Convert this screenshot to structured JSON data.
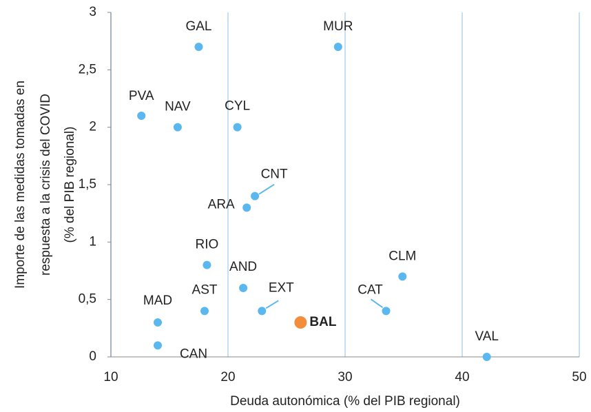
{
  "chart_data": {
    "type": "scatter",
    "xlabel": "Deuda autonómica  (% del PIB regional)",
    "ylabel": [
      "Importe de las medidas  tomadas en",
      "respuesta a la crisis del COVID",
      "(% del PIB regional)"
    ],
    "labels": [
      "GAL",
      "MUR",
      "PVA",
      "NAV",
      "CYL",
      "CNT",
      "ARA",
      "RIO",
      "AND",
      "CLM",
      "AST",
      "EXT",
      "CAT",
      "BAL",
      "MAD",
      "CAN",
      "VAL"
    ],
    "x": [
      17.5,
      29.4,
      12.6,
      15.7,
      20.8,
      22.3,
      21.6,
      18.2,
      21.3,
      34.9,
      18.0,
      22.9,
      33.5,
      26.2,
      14.0,
      14.0,
      42.1
    ],
    "values": [
      2.7,
      2.7,
      2.1,
      2.0,
      2.0,
      1.4,
      1.3,
      0.8,
      0.6,
      0.7,
      0.4,
      0.4,
      0.4,
      0.3,
      0.3,
      0.1,
      0.0
    ],
    "color": "#5bb8ef",
    "colors": [
      "#5bb8ef",
      "#5bb8ef",
      "#5bb8ef",
      "#5bb8ef",
      "#5bb8ef",
      "#5bb8ef",
      "#5bb8ef",
      "#5bb8ef",
      "#5bb8ef",
      "#5bb8ef",
      "#5bb8ef",
      "#5bb8ef",
      "#5bb8ef",
      "#f28e3b",
      "#5bb8ef",
      "#5bb8ef",
      "#5bb8ef"
    ],
    "xlim": [
      10,
      50
    ],
    "xticks": [
      10,
      20,
      30,
      40,
      50
    ],
    "ylim": [
      0,
      3
    ],
    "yticks": [
      0,
      {
        "value": 0.5,
        "label": "0,5"
      },
      1,
      {
        "value": 1.5,
        "label": "1,5"
      },
      2,
      {
        "value": 2.5,
        "label": "2,5"
      },
      3
    ],
    "grid": "x"
  }
}
